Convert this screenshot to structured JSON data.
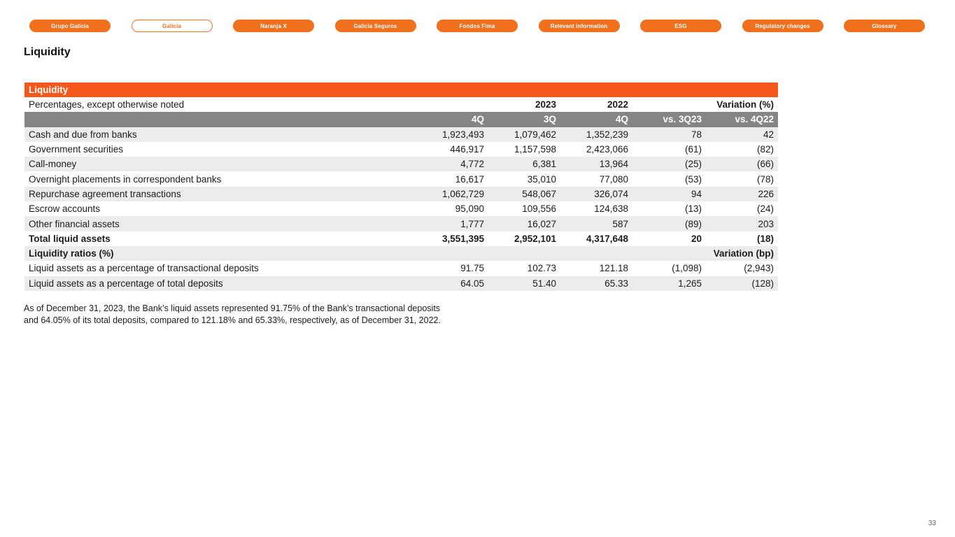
{
  "colors": {
    "brand_orange": "#F0701E",
    "table_header_orange": "#F4581C",
    "subheader_gray": "#858585",
    "stripe_gray": "#ECECEC"
  },
  "nav": {
    "buttons": [
      {
        "label": "Grupo Galicia",
        "active": false
      },
      {
        "label": "Galicia",
        "active": true
      },
      {
        "label": "Naranja X",
        "active": false
      },
      {
        "label": "Galicia Seguros",
        "active": false
      },
      {
        "label": "Fondos Fima",
        "active": false
      },
      {
        "label": "Relevant information",
        "active": false
      },
      {
        "label": "ESG",
        "active": false
      },
      {
        "label": "Regulatory changes",
        "active": false
      },
      {
        "label": "Glossary",
        "active": false
      }
    ]
  },
  "heading": "Liquidity",
  "table": {
    "title": "Liquidity",
    "subtitle": "Percentages, except otherwise noted",
    "col_groups": {
      "y2023": "2023",
      "y2022": "2022",
      "variation_pct": "Variation (%)"
    },
    "quarter_headers": [
      "4Q",
      "3Q",
      "4Q",
      "vs. 3Q23",
      "vs. 4Q22"
    ],
    "rows": [
      {
        "label": "Cash and due from banks",
        "values": [
          "1,923,493",
          "1,079,462",
          "1,352,239",
          "78",
          "42"
        ],
        "bold": false,
        "stripe": true
      },
      {
        "label": "Government securities",
        "values": [
          "446,917",
          "1,157,598",
          "2,423,066",
          "(61)",
          "(82)"
        ],
        "bold": false,
        "stripe": false
      },
      {
        "label": "Call-money",
        "values": [
          "4,772",
          "6,381",
          "13,964",
          "(25)",
          "(66)"
        ],
        "bold": false,
        "stripe": true
      },
      {
        "label": "Overnight placements in correspondent banks",
        "values": [
          "16,617",
          "35,010",
          "77,080",
          "(53)",
          "(78)"
        ],
        "bold": false,
        "stripe": false
      },
      {
        "label": "Repurchase agreement transactions",
        "values": [
          "1,062,729",
          "548,067",
          "326,074",
          "94",
          "226"
        ],
        "bold": false,
        "stripe": true
      },
      {
        "label": "Escrow accounts",
        "values": [
          "95,090",
          "109,556",
          "124,638",
          "(13)",
          "(24)"
        ],
        "bold": false,
        "stripe": false
      },
      {
        "label": "Other financial assets",
        "values": [
          "1,777",
          "16,027",
          "587",
          "(89)",
          "203"
        ],
        "bold": false,
        "stripe": true
      },
      {
        "label": "Total liquid assets",
        "values": [
          "3,551,395",
          "2,952,101",
          "4,317,648",
          "20",
          "(18)"
        ],
        "bold": true,
        "stripe": false
      },
      {
        "label": "Liquidity ratios (%)",
        "section_right": "Variation (bp)",
        "bold": true,
        "stripe": true
      },
      {
        "label": "Liquid assets as a percentage of transactional deposits",
        "values": [
          "91.75",
          "102.73",
          "121.18",
          "(1,098)",
          "(2,943)"
        ],
        "bold": false,
        "stripe": false
      },
      {
        "label": "Liquid assets as a percentage of total deposits",
        "values": [
          "64.05",
          "51.40",
          "65.33",
          "1,265",
          "(128)"
        ],
        "bold": false,
        "stripe": true
      }
    ]
  },
  "footnote": {
    "line1": "As of December 31, 2023, the Bank’s liquid assets represented 91.75% of the Bank’s transactional deposits",
    "line2": "and 64.05% of its total deposits, compared to 121.18% and 65.33%, respectively, as of December 31, 2022."
  },
  "page": {
    "number": "33"
  }
}
